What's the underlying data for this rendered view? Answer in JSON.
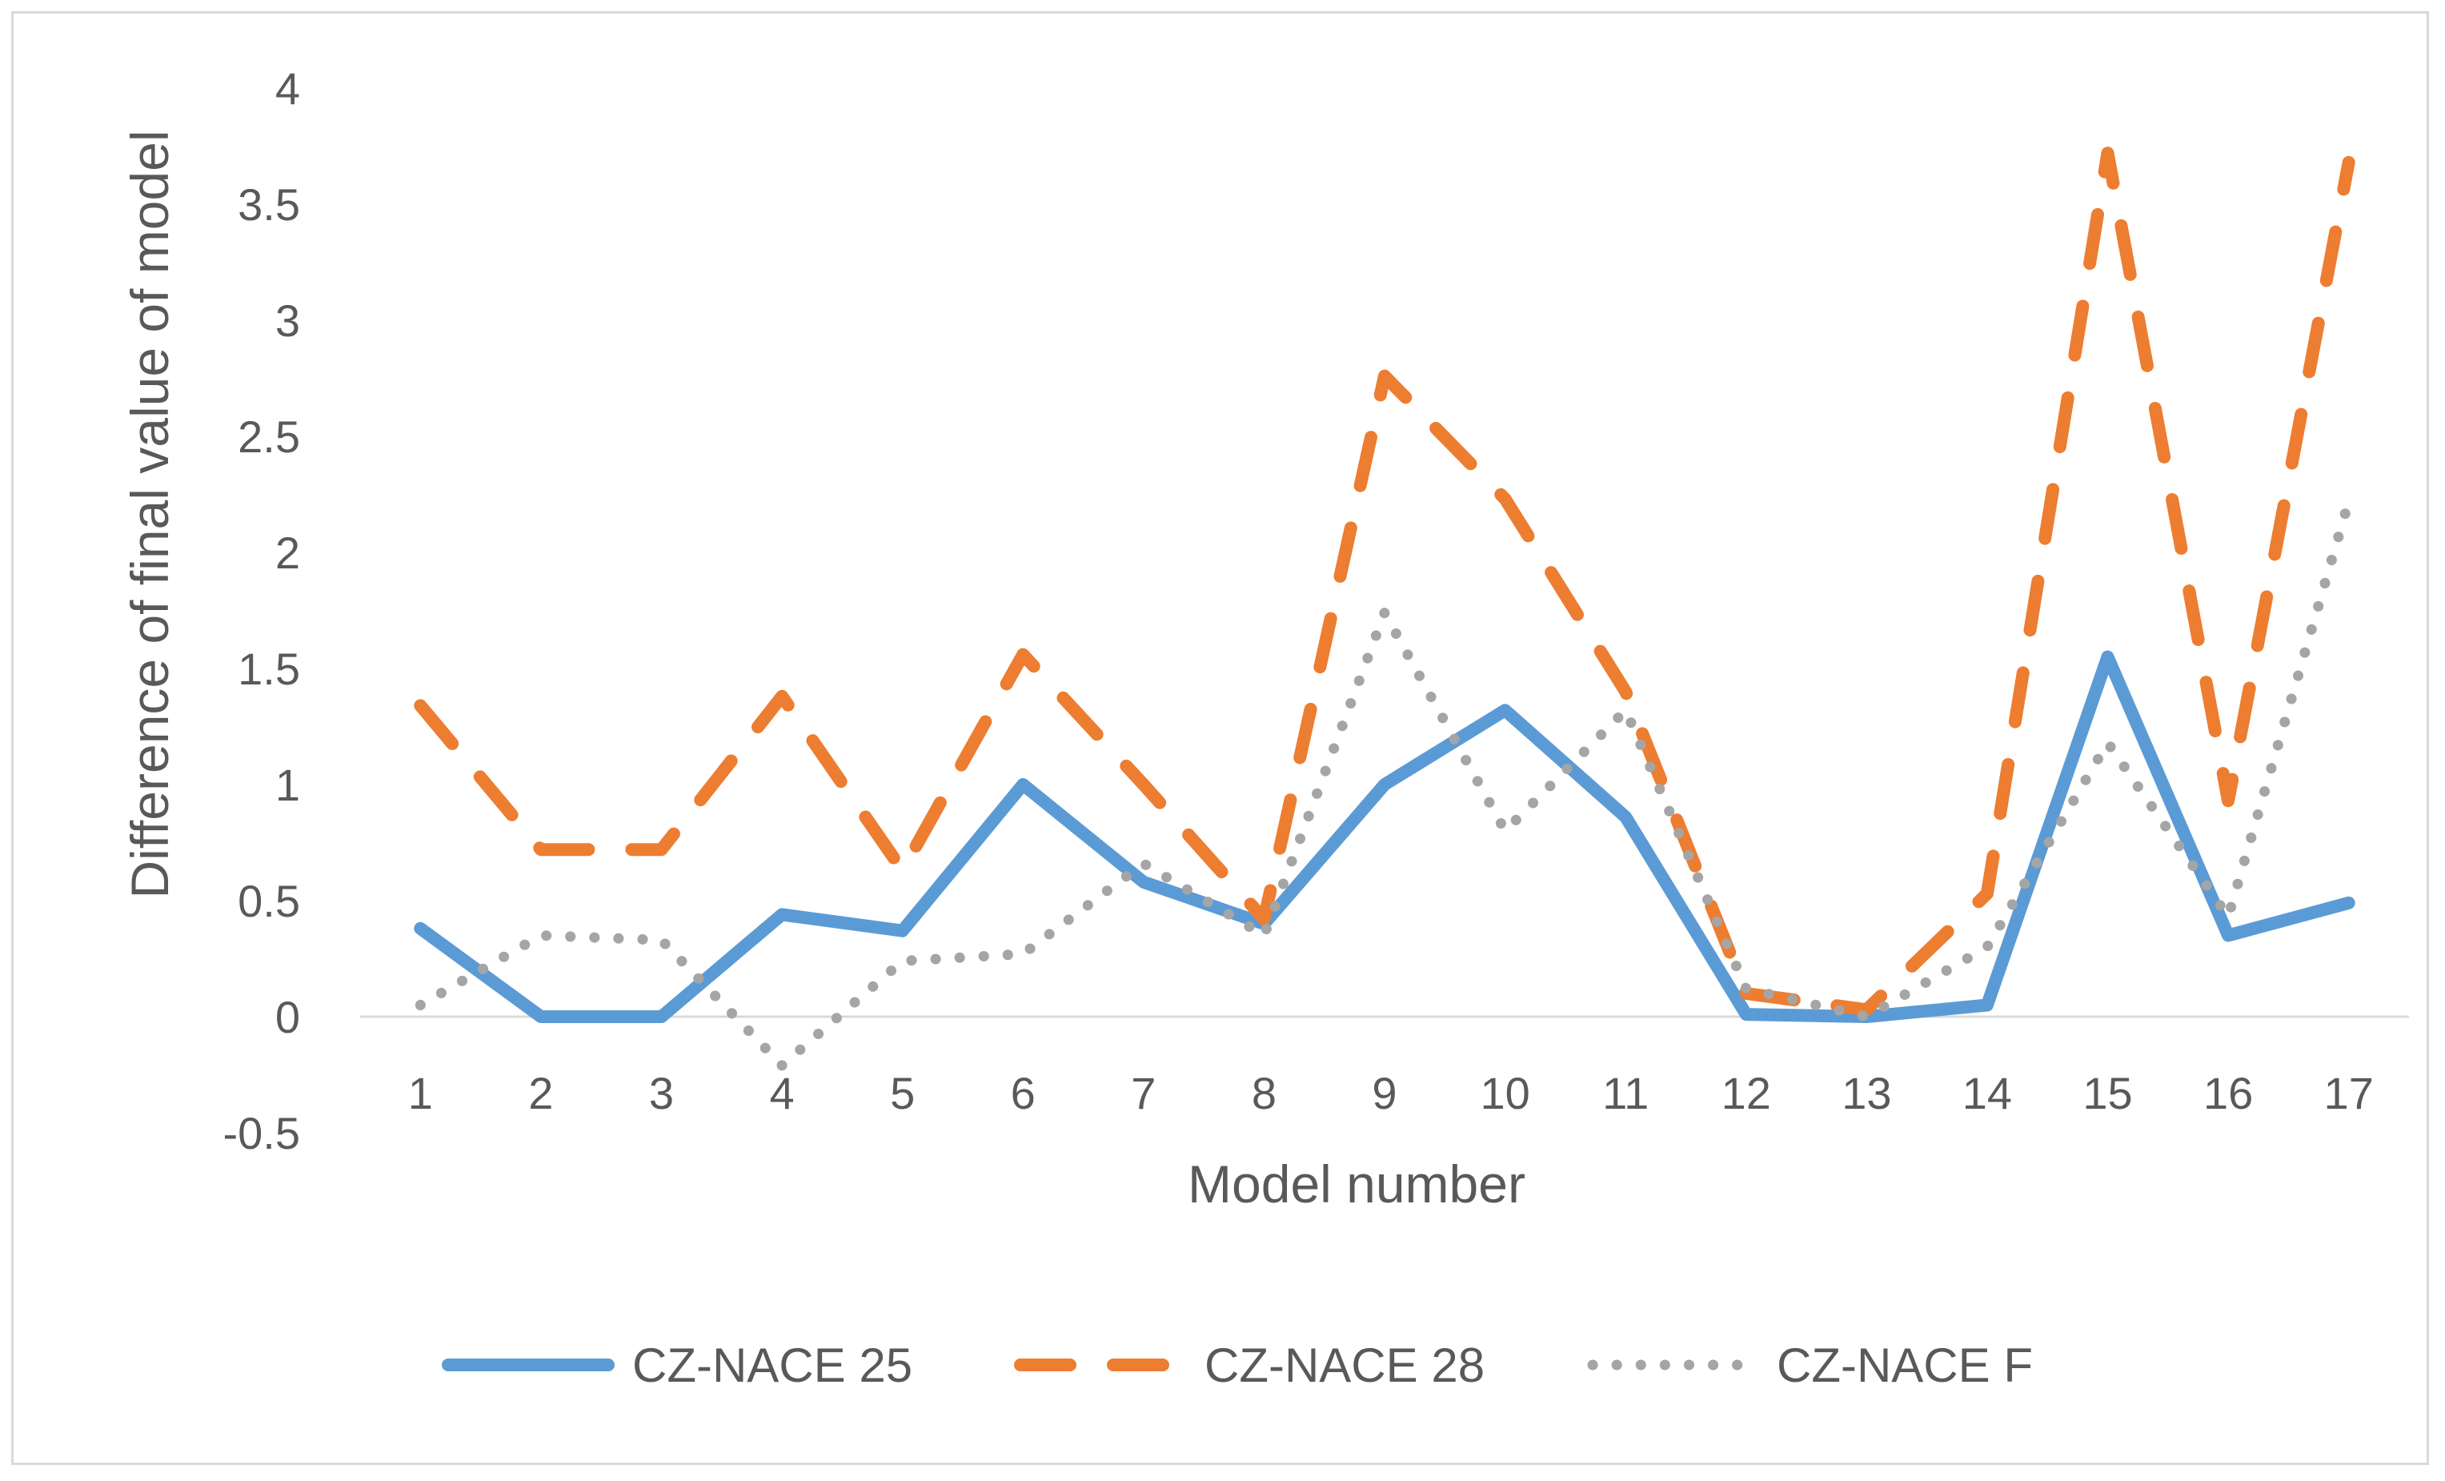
{
  "chart_data": {
    "type": "line",
    "title": "",
    "xlabel": "Model number",
    "ylabel": "Difference of final value of model",
    "categories": [
      "1",
      "2",
      "3",
      "4",
      "5",
      "6",
      "7",
      "8",
      "9",
      "10",
      "11",
      "12",
      "13",
      "14",
      "15",
      "16",
      "17"
    ],
    "ylim": [
      -0.5,
      4
    ],
    "yticks": [
      -0.5,
      0,
      0.5,
      1,
      1.5,
      2,
      2.5,
      3,
      3.5,
      4
    ],
    "ytick_labels": [
      "-0.5",
      "0",
      "0.5",
      "1",
      "1.5",
      "2",
      "2.5",
      "3",
      "3.5",
      "4"
    ],
    "legend_position": "bottom",
    "series": [
      {
        "name": "CZ-NACE 25",
        "style": "solid",
        "color": "#5b9bd5",
        "values": [
          0.38,
          0.0,
          0.0,
          0.44,
          0.37,
          1.0,
          0.58,
          0.4,
          1.0,
          1.32,
          0.86,
          0.01,
          0.0,
          0.05,
          1.55,
          0.35,
          0.49
        ]
      },
      {
        "name": "CZ-NACE 28",
        "style": "dashed",
        "color": "#ed7d31",
        "values": [
          1.34,
          0.72,
          0.72,
          1.38,
          0.63,
          1.56,
          1.0,
          0.42,
          2.76,
          2.23,
          1.4,
          0.1,
          0.03,
          0.53,
          3.72,
          0.93,
          3.68
        ]
      },
      {
        "name": "CZ-NACE F",
        "style": "dotted",
        "color": "#a5a5a5",
        "values": [
          0.05,
          0.35,
          0.33,
          -0.21,
          0.24,
          0.27,
          0.66,
          0.35,
          1.74,
          0.8,
          1.32,
          0.12,
          0.0,
          0.3,
          1.18,
          0.43,
          2.22
        ]
      }
    ]
  }
}
